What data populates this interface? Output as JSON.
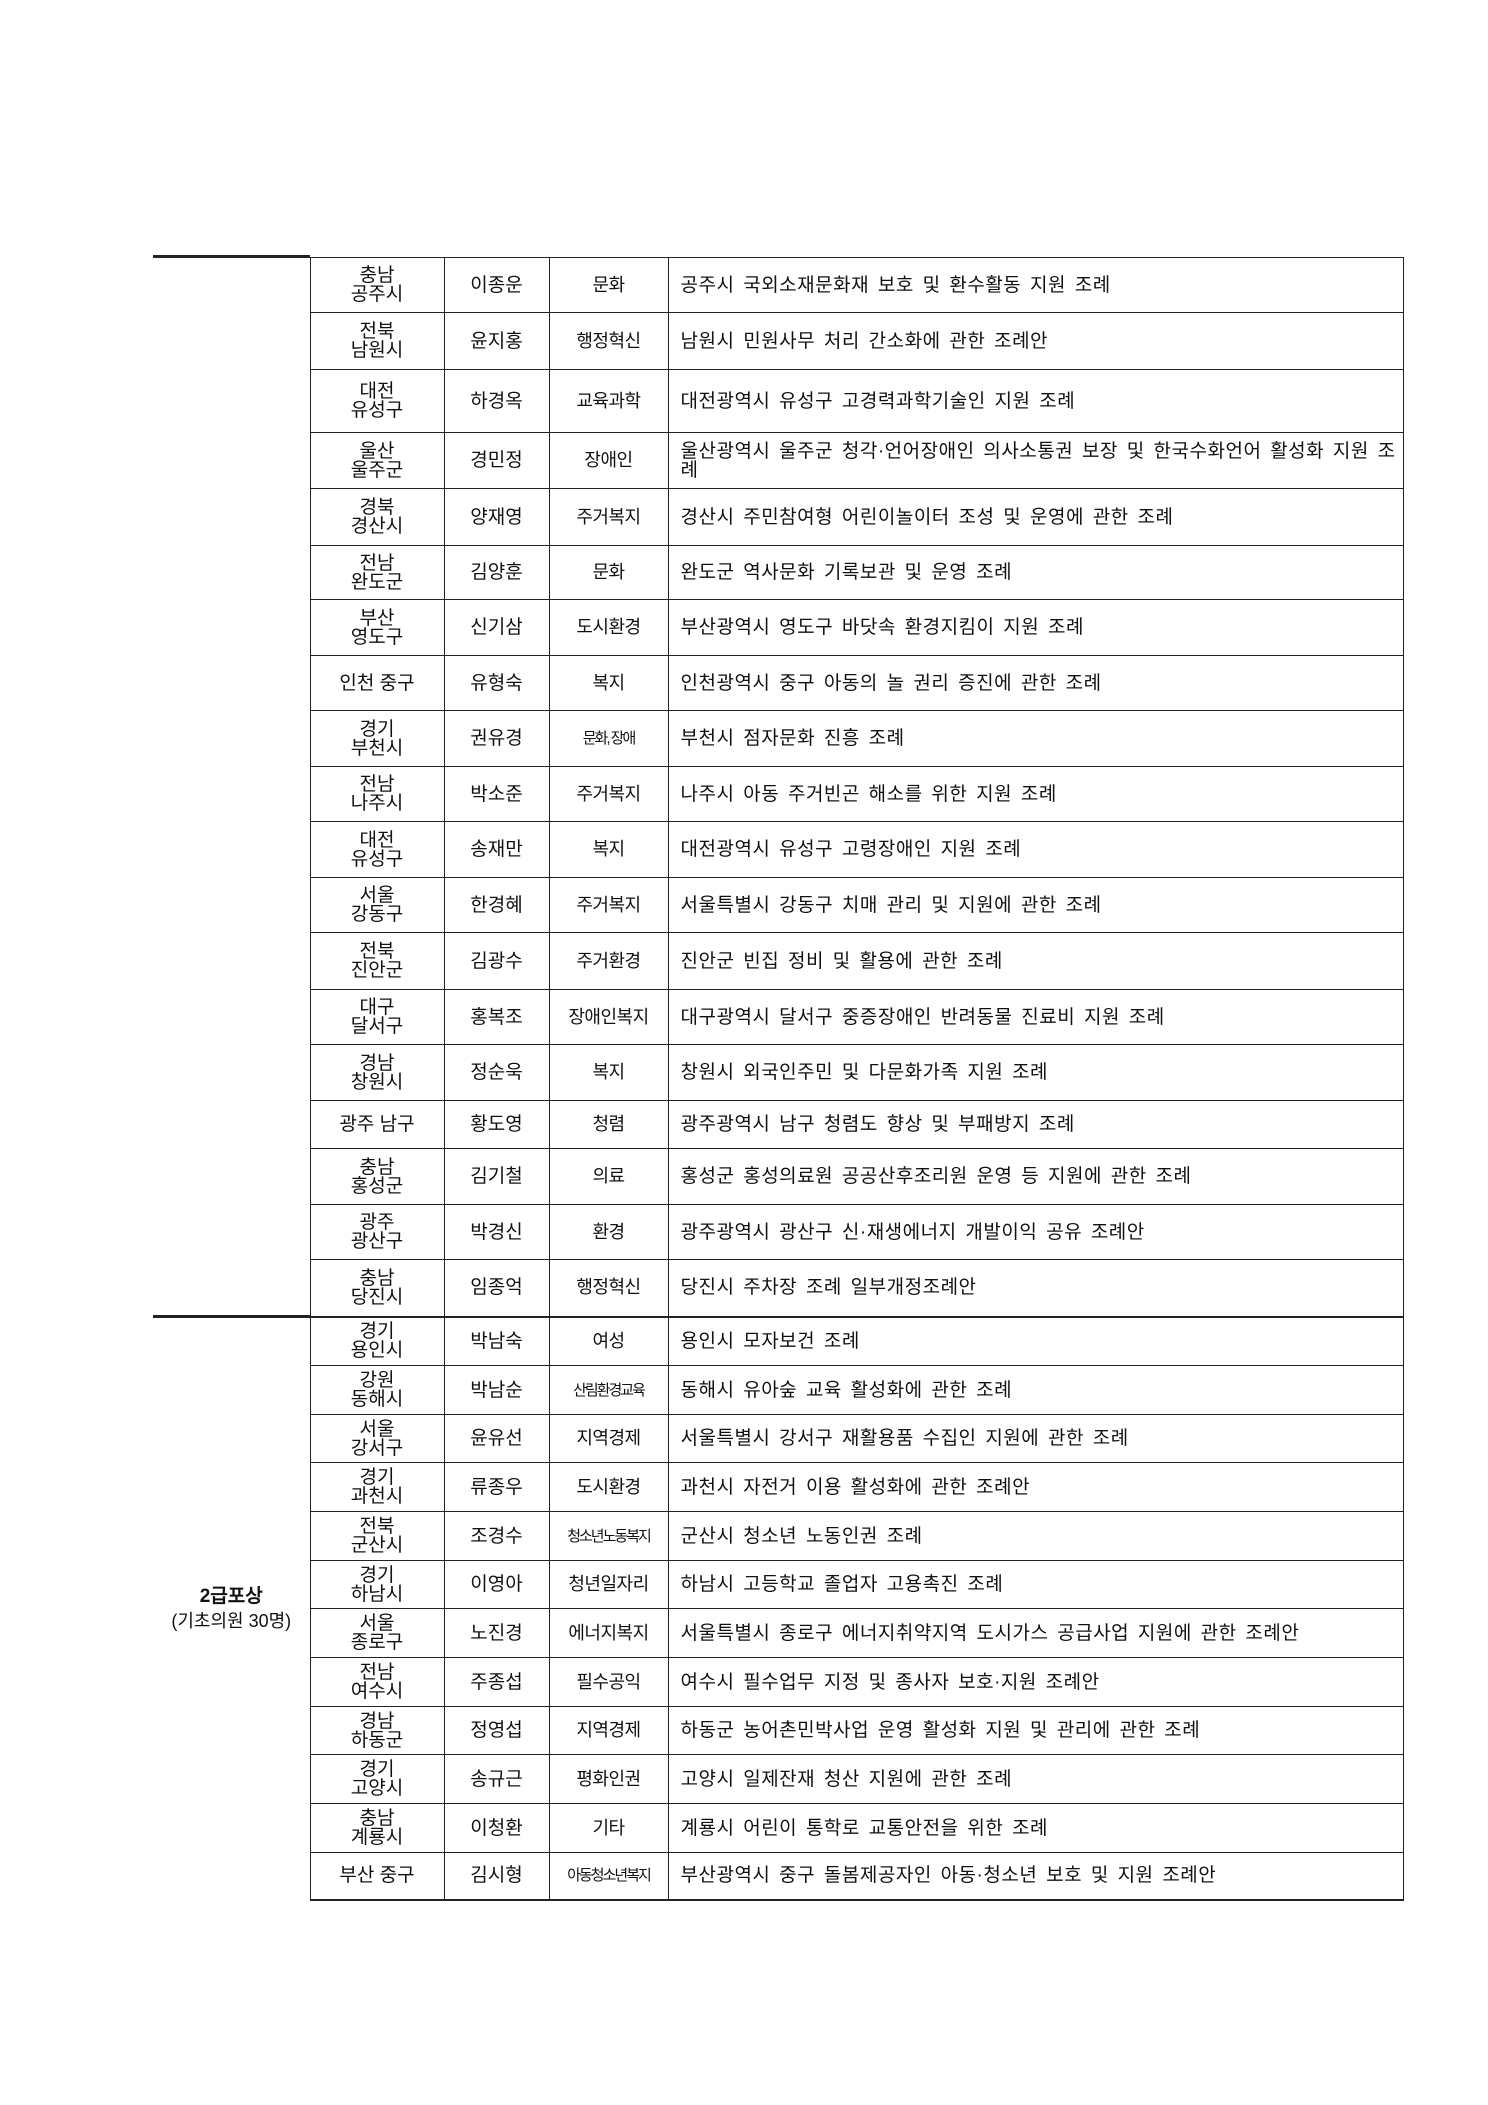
{
  "groups": [
    {
      "title": "",
      "subtitle": "",
      "rows": [
        {
          "region": [
            "충남",
            "공주시"
          ],
          "name": "이종운",
          "field": "문화",
          "law": "공주시 국외소재문화재 보호 및 환수활동 지원 조례"
        },
        {
          "region": [
            "전북",
            "남원시"
          ],
          "name": "윤지홍",
          "field": "행정혁신",
          "law": "남원시 민원사무 처리 간소화에 관한 조례안"
        },
        {
          "region": [
            "대전",
            "유성구"
          ],
          "name": "하경옥",
          "field": "교육과학",
          "law": "대전광역시 유성구 고경력과학기술인 지원 조례"
        },
        {
          "region": [
            "울산",
            "울주군"
          ],
          "name": "경민정",
          "field": "장애인",
          "law": "울산광역시 울주군 청각·언어장애인 의사소통권 보장 및 한국수화언어 활성화 지원 조례"
        },
        {
          "region": [
            "경북",
            "경산시"
          ],
          "name": "양재영",
          "field": "주거복지",
          "law": "경산시 주민참여형 어린이놀이터 조성 및 운영에 관한 조례"
        },
        {
          "region": [
            "전남",
            "완도군"
          ],
          "name": "김양훈",
          "field": "문화",
          "law": "완도군 역사문화 기록보관 및 운영 조례"
        },
        {
          "region": [
            "부산",
            "영도구"
          ],
          "name": "신기삼",
          "field": "도시환경",
          "law": "부산광역시 영도구 바닷속 환경지킴이 지원 조례"
        },
        {
          "region": [
            "인천 중구"
          ],
          "name": "유형숙",
          "field": "복지",
          "law": "인천광역시 중구 아동의 놀 권리 증진에 관한 조례"
        },
        {
          "region": [
            "경기",
            "부천시"
          ],
          "name": "권유경",
          "field": "문화, 장애",
          "law": "부천시 점자문화 진흥 조례"
        },
        {
          "region": [
            "전남",
            "나주시"
          ],
          "name": "박소준",
          "field": "주거복지",
          "law": "나주시 아동 주거빈곤 해소를 위한 지원 조례"
        },
        {
          "region": [
            "대전",
            "유성구"
          ],
          "name": "송재만",
          "field": "복지",
          "law": "대전광역시 유성구 고령장애인 지원 조례"
        },
        {
          "region": [
            "서울",
            "강동구"
          ],
          "name": "한경혜",
          "field": "주거복지",
          "law": "서울특별시 강동구 치매 관리 및 지원에 관한 조례"
        },
        {
          "region": [
            "전북",
            "진안군"
          ],
          "name": "김광수",
          "field": "주거환경",
          "law": "진안군 빈집 정비 및 활용에 관한 조례"
        },
        {
          "region": [
            "대구",
            "달서구"
          ],
          "name": "홍복조",
          "field": "장애인복지",
          "law": "대구광역시 달서구 중증장애인 반려동물 진료비 지원 조례"
        },
        {
          "region": [
            "경남",
            "창원시"
          ],
          "name": "정순욱",
          "field": "복지",
          "law": "창원시 외국인주민 및 다문화가족 지원 조례"
        },
        {
          "region": [
            "광주 남구"
          ],
          "name": "황도영",
          "field": "청렴",
          "law": "광주광역시 남구 청렴도 향상 및 부패방지 조례"
        },
        {
          "region": [
            "충남",
            "홍성군"
          ],
          "name": "김기철",
          "field": "의료",
          "law": "홍성군 홍성의료원 공공산후조리원 운영 등 지원에 관한 조례"
        },
        {
          "region": [
            "광주",
            "광산구"
          ],
          "name": "박경신",
          "field": "환경",
          "law": "광주광역시 광산구 신·재생에너지 개발이익 공유 조례안"
        },
        {
          "region": [
            "충남",
            "당진시"
          ],
          "name": "임종억",
          "field": "행정혁신",
          "law": "당진시 주차장 조례 일부개정조례안"
        }
      ]
    },
    {
      "title": "2급포상",
      "subtitle": "(기초의원 30명)",
      "rows": [
        {
          "region": [
            "경기",
            "용인시"
          ],
          "name": "박남숙",
          "field": "여성",
          "law": "용인시 모자보건 조례"
        },
        {
          "region": [
            "강원",
            "동해시"
          ],
          "name": "박남순",
          "field": "산림환경교육",
          "law": "동해시 유아숲 교육 활성화에 관한 조례"
        },
        {
          "region": [
            "서울",
            "강서구"
          ],
          "name": "윤유선",
          "field": "지역경제",
          "law": "서울특별시 강서구 재활용품 수집인 지원에 관한 조례"
        },
        {
          "region": [
            "경기",
            "과천시"
          ],
          "name": "류종우",
          "field": "도시환경",
          "law": "과천시 자전거 이용 활성화에 관한 조례안"
        },
        {
          "region": [
            "전북",
            "군산시"
          ],
          "name": "조경수",
          "field": "청소년노동복지",
          "law": "군산시 청소년 노동인권 조례"
        },
        {
          "region": [
            "경기",
            "하남시"
          ],
          "name": "이영아",
          "field": "청년일자리",
          "law": "하남시 고등학교 졸업자 고용촉진 조례"
        },
        {
          "region": [
            "서울",
            "종로구"
          ],
          "name": "노진경",
          "field": "에너지복지",
          "law": "서울특별시 종로구 에너지취약지역 도시가스 공급사업 지원에 관한 조례안"
        },
        {
          "region": [
            "전남",
            "여수시"
          ],
          "name": "주종섭",
          "field": "필수공익",
          "law": "여수시 필수업무 지정 및 종사자 보호·지원 조례안"
        },
        {
          "region": [
            "경남",
            "하동군"
          ],
          "name": "정영섭",
          "field": "지역경제",
          "law": "하동군 농어촌민박사업 운영 활성화 지원 및 관리에 관한 조례"
        },
        {
          "region": [
            "경기",
            "고양시"
          ],
          "name": "송규근",
          "field": "평화인권",
          "law": "고양시 일제잔재 청산 지원에 관한 조례"
        },
        {
          "region": [
            "충남",
            "계룡시"
          ],
          "name": "이청환",
          "field": "기타",
          "law": "계룡시 어린이 통학로 교통안전을 위한 조례"
        },
        {
          "region": [
            "부산 중구"
          ],
          "name": "김시형",
          "field": "아동청소년복지",
          "law": "부산광역시 중구 돌봄제공자인 아동·청소년 보호 및 지원 조례안"
        }
      ]
    }
  ]
}
